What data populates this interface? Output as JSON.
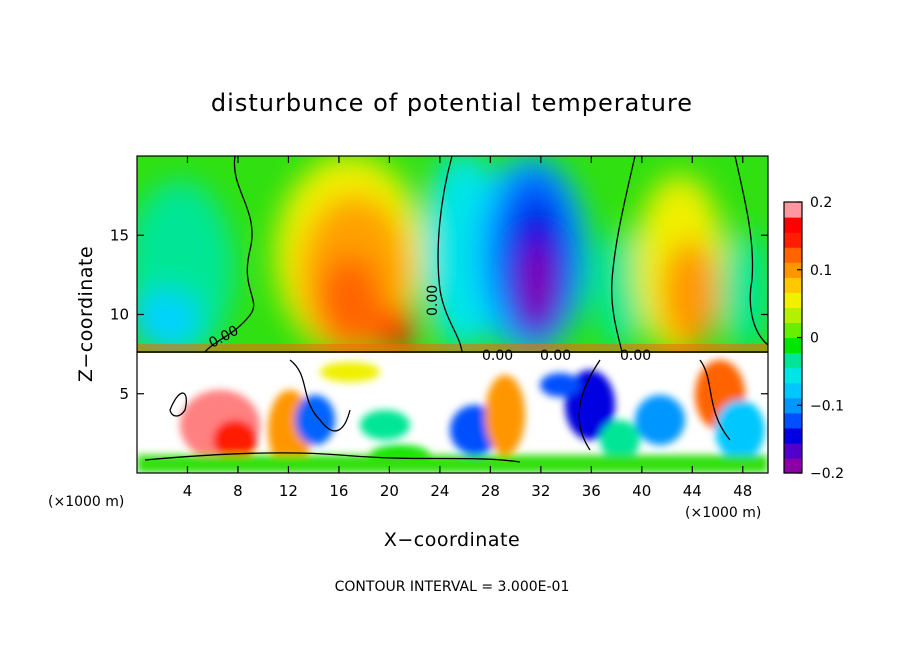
{
  "chart_data": {
    "type": "heatmap",
    "title": "disturbunce of potential temperature",
    "xlabel": "X−coordinate",
    "ylabel": "Z−coordinate",
    "x_unit_label": "(×1000 m)",
    "xlim": [
      0,
      50
    ],
    "ylim": [
      0,
      20
    ],
    "x_ticks": [
      4,
      8,
      12,
      16,
      20,
      24,
      28,
      32,
      36,
      40,
      44,
      48
    ],
    "y_ticks": [
      5,
      10,
      15
    ],
    "x_tick_labels": [
      "4",
      "8",
      "12",
      "16",
      "20",
      "24",
      "28",
      "32",
      "36",
      "40",
      "44",
      "48"
    ],
    "y_tick_labels": [
      "5",
      "10",
      "15"
    ],
    "colorbar": {
      "min": -0.2,
      "max": 0.2,
      "ticks": [
        0.2,
        0.1,
        0,
        -0.1,
        -0.2
      ],
      "tick_labels": [
        "0.2",
        "0.1",
        "0",
        "−0.1",
        "−0.2"
      ],
      "colors": [
        "#8c00a8",
        "#5000c8",
        "#0000e0",
        "#0050ff",
        "#0096ff",
        "#00c8ff",
        "#00e6e6",
        "#00e696",
        "#00e600",
        "#64f000",
        "#b4f000",
        "#f0f000",
        "#ffc800",
        "#ff9600",
        "#ff6400",
        "#ff1e00",
        "#ff0000",
        "#ff96a0"
      ]
    },
    "contour_labels": [
      "0.00",
      "0.00",
      "0.00",
      "0.00",
      "0.00"
    ],
    "contour_interval_text": "CONTOUR INTERVAL = 3.000E-01",
    "field_features": [
      {
        "x": 17,
        "z": 13.5,
        "value": 0.12
      },
      {
        "x": 20,
        "z": 9.5,
        "value": 0.14
      },
      {
        "x": 31.5,
        "z": 12,
        "value": -0.17
      },
      {
        "x": 45,
        "z": 12,
        "value": 0.09
      },
      {
        "x": 4,
        "z": 12,
        "value": -0.04
      },
      {
        "x": 25,
        "z": 12,
        "value": -0.05
      }
    ]
  }
}
